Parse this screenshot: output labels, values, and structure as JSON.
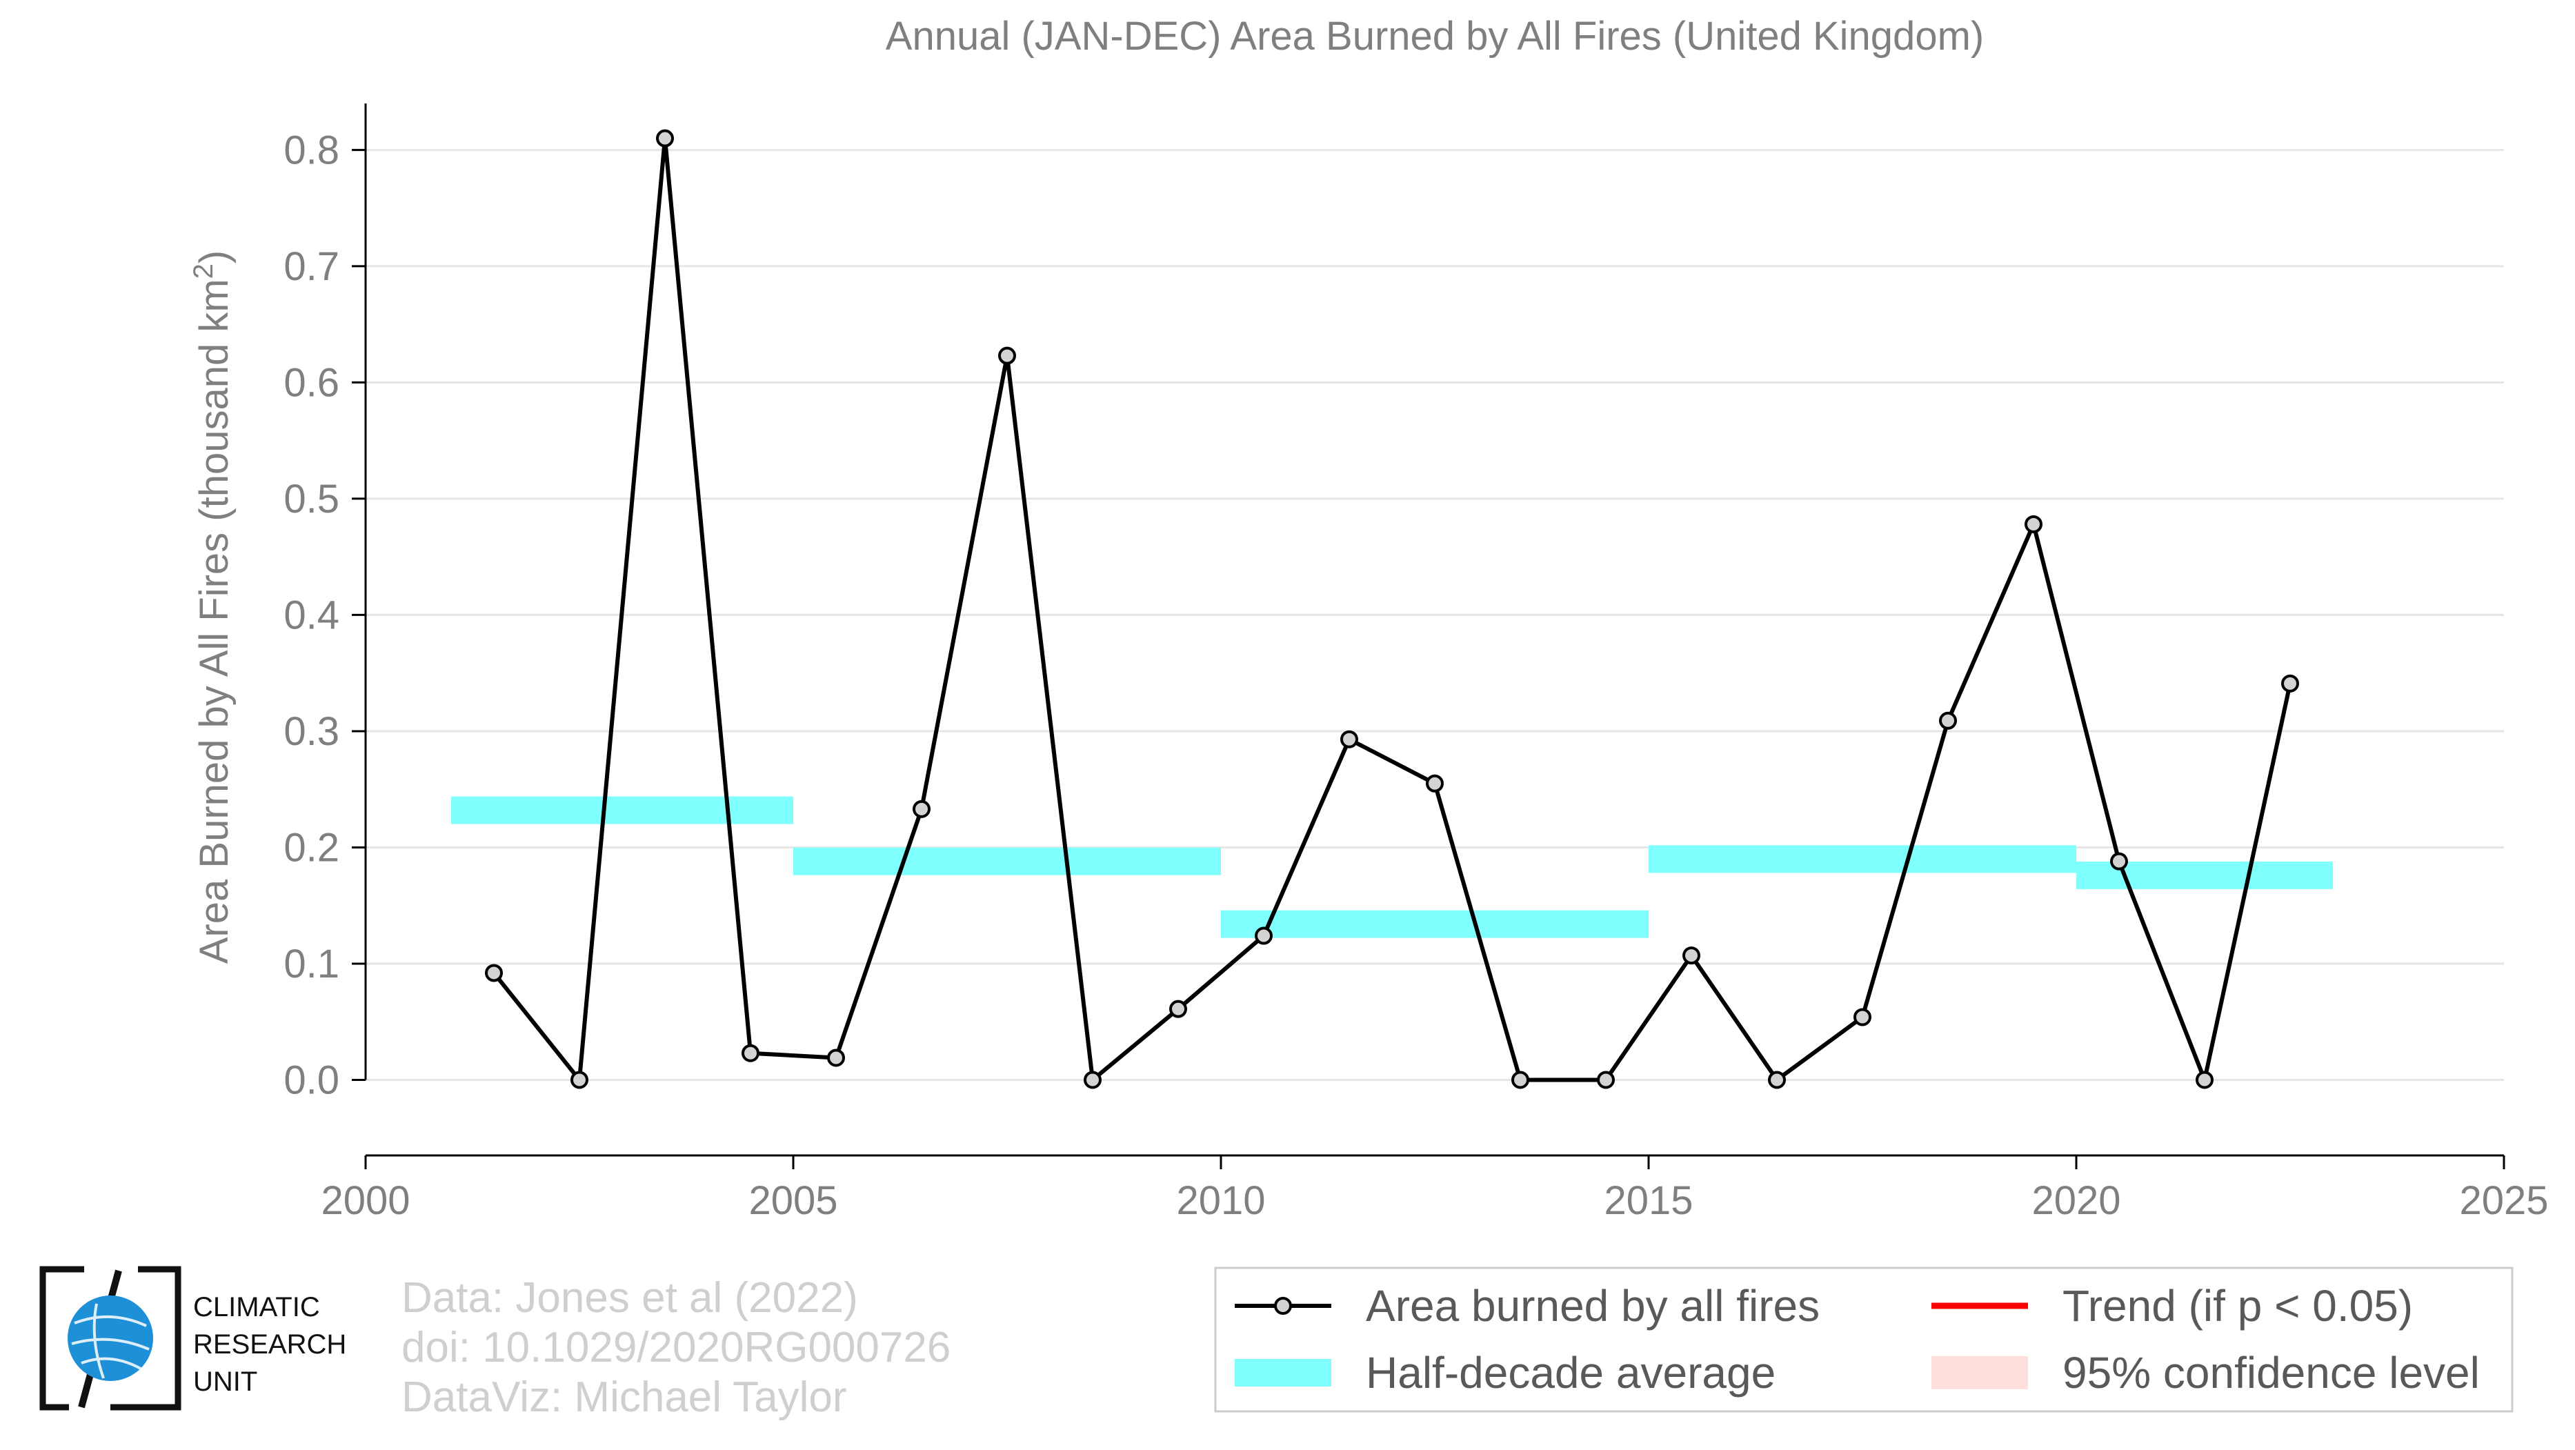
{
  "chart_data": {
    "type": "line",
    "title": "Annual (JAN-DEC) Area Burned by All Fires (United Kingdom)",
    "ylabel": "Area Burned by All Fires (thousand km",
    "ylabel_sup": "2",
    "ylabel_close": ")",
    "xlim": [
      2000,
      2025
    ],
    "ylim": [
      -0.065,
      0.84
    ],
    "x_ticks": [
      2000,
      2005,
      2010,
      2015,
      2020,
      2025
    ],
    "x_tick_labels": [
      "2000",
      "2005",
      "2010",
      "2015",
      "2020",
      "2025"
    ],
    "y_ticks": [
      0.0,
      0.1,
      0.2,
      0.3,
      0.4,
      0.5,
      0.6,
      0.7,
      0.8
    ],
    "y_tick_labels": [
      "0.0",
      "0.1",
      "0.2",
      "0.3",
      "0.4",
      "0.5",
      "0.6",
      "0.7",
      "0.8"
    ],
    "grid": true,
    "series": [
      {
        "name": "Area burned by all fires",
        "color": "#000000",
        "marker_fill": "#d3d3d3",
        "x": [
          2001.5,
          2002.5,
          2003.5,
          2004.5,
          2005.5,
          2006.5,
          2007.5,
          2008.5,
          2009.5,
          2010.5,
          2011.5,
          2012.5,
          2013.5,
          2014.5,
          2015.5,
          2016.5,
          2017.5,
          2018.5,
          2019.5,
          2020.5,
          2021.5,
          2022.5
        ],
        "y": [
          0.092,
          0.0,
          0.81,
          0.023,
          0.019,
          0.233,
          0.623,
          0.0,
          0.061,
          0.124,
          0.293,
          0.255,
          0.0,
          0.0,
          0.107,
          0.0,
          0.054,
          0.309,
          0.478,
          0.188,
          0.0,
          0.341
        ]
      }
    ],
    "half_decade_average": {
      "name": "Half-decade average",
      "color": "#80ffff",
      "segments": [
        {
          "x0": 2001,
          "x1": 2005,
          "y": 0.232
        },
        {
          "x0": 2005,
          "x1": 2010,
          "y": 0.188
        },
        {
          "x0": 2010,
          "x1": 2015,
          "y": 0.134
        },
        {
          "x0": 2015,
          "x1": 2020,
          "y": 0.19
        },
        {
          "x0": 2020,
          "x1": 2023,
          "y": 0.176
        }
      ]
    },
    "legend": {
      "placement": "bottom-right",
      "entries": [
        {
          "label": "Area burned by all fires",
          "kind": "line-marker",
          "color": "#000000"
        },
        {
          "label": "Trend (if p < 0.05)",
          "kind": "line",
          "color": "#ff0000"
        },
        {
          "label": "Half-decade average",
          "kind": "band",
          "color": "#80ffff"
        },
        {
          "label": "95% confidence level",
          "kind": "patch",
          "color": "#ffdede"
        }
      ]
    }
  },
  "credits": {
    "line1": "Data: Jones et al (2022)",
    "line2": "doi: 10.1029/2020RG000726",
    "line3": "DataViz: Michael Taylor"
  },
  "logo": {
    "line1": "CLIMATIC",
    "line2": "RESEARCH",
    "line3": "UNIT",
    "globe_color": "#1e90d8"
  }
}
